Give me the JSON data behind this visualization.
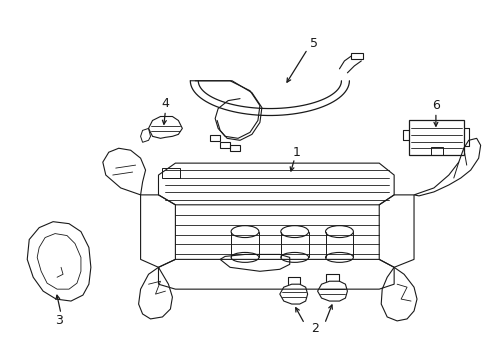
{
  "background": "#ffffff",
  "line_color": "#1a1a1a",
  "line_width": 0.8,
  "fig_w": 4.89,
  "fig_h": 3.6,
  "dpi": 100
}
